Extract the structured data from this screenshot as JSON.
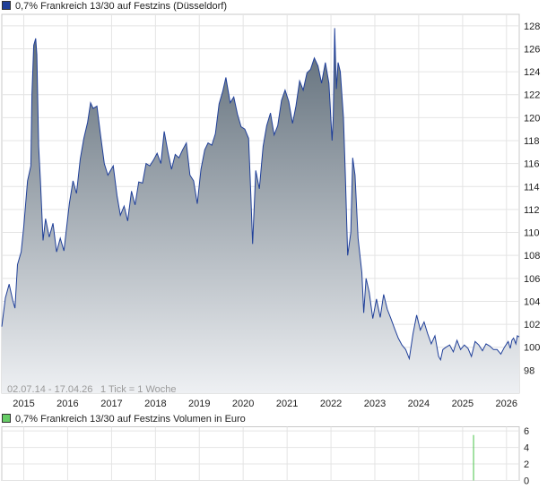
{
  "price_legend": {
    "label": "0,7% Frankreich 13/30 auf Festzins (Düsseldorf)",
    "color": "#1f3f99"
  },
  "volume_legend": {
    "label": "0,7% Frankreich 13/30 auf Festzins Volumen in Euro",
    "color": "#66cc66"
  },
  "footer": {
    "date_range": "02.07.14 - 17.04.26",
    "tick_info": "1 Tick = 1 Woche"
  },
  "chart_data": [
    {
      "type": "area",
      "name": "price",
      "x_start": "2014-07-02",
      "x_end": "2026-04-17",
      "ylim": [
        96,
        129
      ],
      "yticks": [
        98,
        100,
        102,
        104,
        106,
        108,
        110,
        112,
        114,
        116,
        118,
        120,
        122,
        124,
        126,
        128
      ],
      "xticks": [
        {
          "label": "2015",
          "date": "2015-01-01"
        },
        {
          "label": "2016",
          "date": "2016-01-01"
        },
        {
          "label": "2017",
          "date": "2017-01-01"
        },
        {
          "label": "2018",
          "date": "2018-01-01"
        },
        {
          "label": "2019",
          "date": "2019-01-01"
        },
        {
          "label": "2020",
          "date": "2020-01-01"
        },
        {
          "label": "2021",
          "date": "2021-01-01"
        },
        {
          "label": "2022",
          "date": "2022-01-01"
        },
        {
          "label": "2023",
          "date": "2023-01-01"
        },
        {
          "label": "2024",
          "date": "2024-01-01"
        },
        {
          "label": "2025",
          "date": "2025-01-01"
        },
        {
          "label": "2026",
          "date": "2026-01-01"
        }
      ],
      "grid": true,
      "line_color": "#1f3f99",
      "fill_top": "#5d6b77",
      "fill_bottom": "#eef0f3",
      "points": [
        [
          "2014-07-02",
          101.8
        ],
        [
          "2014-08-01",
          104.3
        ],
        [
          "2014-09-01",
          105.5
        ],
        [
          "2014-10-01",
          104.1
        ],
        [
          "2014-10-20",
          103.4
        ],
        [
          "2014-11-10",
          107.2
        ],
        [
          "2014-12-10",
          108.3
        ],
        [
          "2015-01-01",
          110.5
        ],
        [
          "2015-02-01",
          114.5
        ],
        [
          "2015-03-01",
          115.8
        ],
        [
          "2015-03-10",
          122.0
        ],
        [
          "2015-03-25",
          126.3
        ],
        [
          "2015-04-10",
          126.9
        ],
        [
          "2015-04-20",
          125.5
        ],
        [
          "2015-05-05",
          117.5
        ],
        [
          "2015-05-20",
          114.5
        ],
        [
          "2015-06-10",
          109.3
        ],
        [
          "2015-07-01",
          111.2
        ],
        [
          "2015-08-01",
          109.6
        ],
        [
          "2015-09-01",
          110.8
        ],
        [
          "2015-10-01",
          108.3
        ],
        [
          "2015-11-01",
          109.5
        ],
        [
          "2015-12-01",
          108.4
        ],
        [
          "2016-01-15",
          112.5
        ],
        [
          "2016-02-15",
          114.5
        ],
        [
          "2016-03-15",
          113.4
        ],
        [
          "2016-04-15",
          116.4
        ],
        [
          "2016-05-15",
          118.2
        ],
        [
          "2016-06-15",
          119.6
        ],
        [
          "2016-07-10",
          121.3
        ],
        [
          "2016-08-01",
          120.8
        ],
        [
          "2016-09-01",
          121.0
        ],
        [
          "2016-10-01",
          118.5
        ],
        [
          "2016-11-01",
          116.0
        ],
        [
          "2016-12-01",
          115.0
        ],
        [
          "2017-01-15",
          115.8
        ],
        [
          "2017-02-15",
          113.2
        ],
        [
          "2017-03-15",
          111.5
        ],
        [
          "2017-04-15",
          112.3
        ],
        [
          "2017-05-15",
          111.0
        ],
        [
          "2017-06-15",
          113.6
        ],
        [
          "2017-07-15",
          112.4
        ],
        [
          "2017-08-15",
          114.4
        ],
        [
          "2017-09-15",
          114.3
        ],
        [
          "2017-10-15",
          116.0
        ],
        [
          "2017-11-15",
          115.8
        ],
        [
          "2017-12-15",
          116.3
        ],
        [
          "2018-01-15",
          116.9
        ],
        [
          "2018-02-15",
          116.0
        ],
        [
          "2018-03-15",
          118.8
        ],
        [
          "2018-04-15",
          117.0
        ],
        [
          "2018-05-15",
          115.5
        ],
        [
          "2018-06-15",
          116.8
        ],
        [
          "2018-07-15",
          116.5
        ],
        [
          "2018-08-15",
          117.2
        ],
        [
          "2018-09-15",
          117.8
        ],
        [
          "2018-10-15",
          115.0
        ],
        [
          "2018-11-15",
          114.5
        ],
        [
          "2018-12-15",
          112.5
        ],
        [
          "2019-01-15",
          115.5
        ],
        [
          "2019-02-15",
          117.2
        ],
        [
          "2019-03-15",
          117.8
        ],
        [
          "2019-04-15",
          117.6
        ],
        [
          "2019-05-15",
          118.6
        ],
        [
          "2019-06-15",
          121.2
        ],
        [
          "2019-07-15",
          122.3
        ],
        [
          "2019-08-10",
          123.5
        ],
        [
          "2019-09-15",
          121.3
        ],
        [
          "2019-10-15",
          121.8
        ],
        [
          "2019-11-15",
          120.3
        ],
        [
          "2019-12-15",
          119.2
        ],
        [
          "2020-01-15",
          119.0
        ],
        [
          "2020-02-15",
          118.2
        ],
        [
          "2020-03-05",
          113.3
        ],
        [
          "2020-03-20",
          109.0
        ],
        [
          "2020-04-15",
          115.4
        ],
        [
          "2020-05-15",
          113.8
        ],
        [
          "2020-06-15",
          117.5
        ],
        [
          "2020-07-15",
          119.3
        ],
        [
          "2020-08-15",
          120.4
        ],
        [
          "2020-09-15",
          118.5
        ],
        [
          "2020-10-15",
          119.3
        ],
        [
          "2020-11-15",
          121.5
        ],
        [
          "2020-12-15",
          122.4
        ],
        [
          "2021-01-15",
          121.4
        ],
        [
          "2021-02-15",
          119.5
        ],
        [
          "2021-03-15",
          121.0
        ],
        [
          "2021-04-15",
          123.2
        ],
        [
          "2021-05-15",
          122.4
        ],
        [
          "2021-06-15",
          123.9
        ],
        [
          "2021-07-15",
          124.2
        ],
        [
          "2021-08-15",
          125.2
        ],
        [
          "2021-09-15",
          124.5
        ],
        [
          "2021-10-15",
          123.0
        ],
        [
          "2021-11-15",
          124.8
        ],
        [
          "2021-12-15",
          123.0
        ],
        [
          "2022-01-10",
          118.0
        ],
        [
          "2022-01-20",
          120.0
        ],
        [
          "2022-02-01",
          127.8
        ],
        [
          "2022-02-15",
          122.5
        ],
        [
          "2022-03-01",
          124.8
        ],
        [
          "2022-03-20",
          124.0
        ],
        [
          "2022-04-15",
          120.0
        ],
        [
          "2022-05-01",
          115.0
        ],
        [
          "2022-05-20",
          108.0
        ],
        [
          "2022-06-15",
          110.0
        ],
        [
          "2022-07-01",
          116.5
        ],
        [
          "2022-07-20",
          115.0
        ],
        [
          "2022-08-15",
          109.5
        ],
        [
          "2022-09-15",
          106.5
        ],
        [
          "2022-10-01",
          103.0
        ],
        [
          "2022-10-20",
          106.0
        ],
        [
          "2022-11-15",
          104.8
        ],
        [
          "2022-12-15",
          102.5
        ],
        [
          "2023-01-15",
          104.2
        ],
        [
          "2023-02-15",
          102.6
        ],
        [
          "2023-03-15",
          104.6
        ],
        [
          "2023-04-15",
          103.3
        ],
        [
          "2023-05-15",
          102.5
        ],
        [
          "2023-06-15",
          101.6
        ],
        [
          "2023-07-15",
          100.8
        ],
        [
          "2023-08-15",
          100.2
        ],
        [
          "2023-09-15",
          99.8
        ],
        [
          "2023-10-15",
          99.0
        ],
        [
          "2023-11-15",
          101.2
        ],
        [
          "2023-12-15",
          102.8
        ],
        [
          "2024-01-15",
          101.5
        ],
        [
          "2024-02-15",
          102.2
        ],
        [
          "2024-03-15",
          101.2
        ],
        [
          "2024-04-15",
          100.3
        ],
        [
          "2024-05-15",
          101.0
        ],
        [
          "2024-06-15",
          99.2
        ],
        [
          "2024-07-01",
          98.9
        ],
        [
          "2024-07-20",
          99.8
        ],
        [
          "2024-08-15",
          100.0
        ],
        [
          "2024-09-15",
          100.2
        ],
        [
          "2024-10-15",
          99.6
        ],
        [
          "2024-11-15",
          100.6
        ],
        [
          "2024-12-15",
          99.8
        ],
        [
          "2025-01-15",
          100.2
        ],
        [
          "2025-02-15",
          99.9
        ],
        [
          "2025-03-15",
          99.2
        ],
        [
          "2025-04-15",
          100.5
        ],
        [
          "2025-05-15",
          100.2
        ],
        [
          "2025-06-15",
          99.7
        ],
        [
          "2025-07-15",
          100.3
        ],
        [
          "2025-08-15",
          100.1
        ],
        [
          "2025-09-15",
          99.8
        ],
        [
          "2025-10-15",
          99.8
        ],
        [
          "2025-11-15",
          99.4
        ],
        [
          "2025-12-15",
          100.0
        ],
        [
          "2026-01-15",
          100.5
        ],
        [
          "2026-02-01",
          99.9
        ],
        [
          "2026-02-15",
          100.6
        ],
        [
          "2026-03-01",
          100.8
        ],
        [
          "2026-03-20",
          100.3
        ],
        [
          "2026-04-01",
          101.0
        ],
        [
          "2026-04-17",
          100.9
        ]
      ]
    },
    {
      "type": "bar",
      "name": "volume",
      "ylim": [
        0,
        6.5
      ],
      "yticks": [
        0,
        2,
        4,
        6
      ],
      "bar_color": "#66cc66",
      "bars": [
        [
          "2025-04-01",
          5.5
        ]
      ]
    }
  ]
}
